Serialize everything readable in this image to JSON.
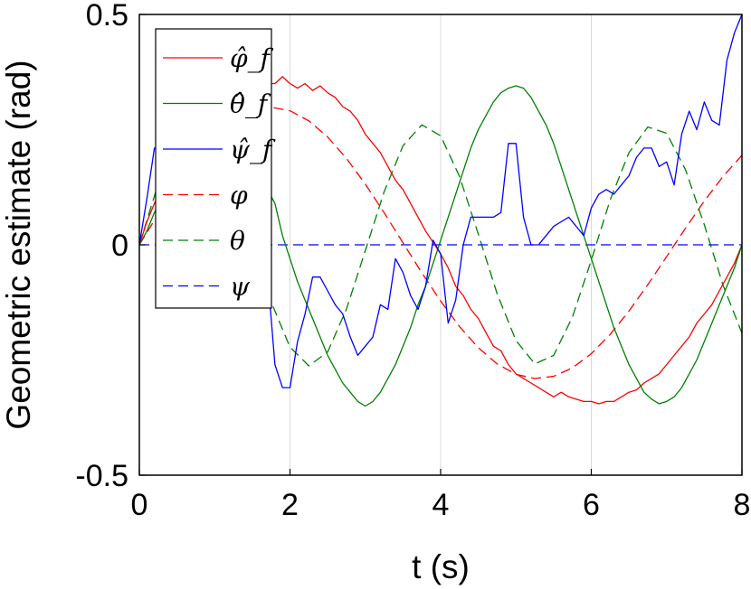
{
  "chart_data": {
    "type": "line",
    "title": "",
    "xlabel": "t (s)",
    "ylabel": "Geometric estimate (rad)",
    "xlim": [
      0,
      8
    ],
    "ylim": [
      -0.5,
      0.5
    ],
    "xticks": [
      0,
      2,
      4,
      6,
      8
    ],
    "xtick_labels": [
      "0",
      "2",
      "4",
      "6",
      "8"
    ],
    "yticks": [
      -0.5,
      0,
      0.5
    ],
    "ytick_labels": [
      "-0.5",
      "0",
      "0.5"
    ],
    "grid": "x-only",
    "legend_position": "top-left",
    "series": [
      {
        "name": "φ̂_f",
        "color": "#ff0000",
        "style": "solid",
        "x": [
          0,
          0.1,
          0.2,
          0.3,
          0.4,
          0.5,
          0.6,
          0.7,
          0.8,
          0.9,
          1.0,
          1.1,
          1.2,
          1.3,
          1.4,
          1.5,
          1.6,
          1.7,
          1.8,
          1.9,
          2.0,
          2.1,
          2.2,
          2.3,
          2.4,
          2.5,
          2.6,
          2.7,
          2.8,
          2.9,
          3.0,
          3.1,
          3.2,
          3.3,
          3.4,
          3.5,
          3.6,
          3.7,
          3.8,
          3.9,
          4.0,
          4.1,
          4.2,
          4.3,
          4.4,
          4.5,
          4.6,
          4.7,
          4.8,
          4.9,
          5.0,
          5.1,
          5.2,
          5.3,
          5.4,
          5.5,
          5.6,
          5.7,
          5.8,
          5.9,
          6.0,
          6.1,
          6.2,
          6.3,
          6.4,
          6.5,
          6.6,
          6.7,
          6.8,
          6.9,
          7.0,
          7.1,
          7.2,
          7.3,
          7.4,
          7.5,
          7.6,
          7.7,
          7.8,
          7.9,
          8.0
        ],
        "y": [
          0,
          0.05,
          0.09,
          0.12,
          0.16,
          0.19,
          0.22,
          0.25,
          0.27,
          0.29,
          0.31,
          0.32,
          0.33,
          0.34,
          0.34,
          0.35,
          0.345,
          0.35,
          0.35,
          0.365,
          0.35,
          0.34,
          0.35,
          0.335,
          0.345,
          0.33,
          0.32,
          0.3,
          0.29,
          0.27,
          0.24,
          0.22,
          0.2,
          0.17,
          0.14,
          0.12,
          0.09,
          0.06,
          0.03,
          0.005,
          -0.02,
          -0.05,
          -0.09,
          -0.11,
          -0.14,
          -0.16,
          -0.19,
          -0.22,
          -0.23,
          -0.26,
          -0.28,
          -0.29,
          -0.3,
          -0.31,
          -0.32,
          -0.33,
          -0.32,
          -0.33,
          -0.335,
          -0.34,
          -0.34,
          -0.345,
          -0.34,
          -0.34,
          -0.33,
          -0.32,
          -0.315,
          -0.3,
          -0.29,
          -0.28,
          -0.26,
          -0.24,
          -0.22,
          -0.2,
          -0.17,
          -0.15,
          -0.13,
          -0.1,
          -0.07,
          -0.04,
          0
        ]
      },
      {
        "name": "θ̂_f",
        "color": "#008000",
        "style": "solid",
        "x": [
          0,
          0.1,
          0.2,
          0.3,
          0.4,
          0.5,
          0.6,
          0.7,
          0.8,
          0.9,
          1.0,
          1.1,
          1.2,
          1.3,
          1.4,
          1.5,
          1.6,
          1.7,
          1.8,
          1.9,
          2.0,
          2.1,
          2.2,
          2.3,
          2.4,
          2.5,
          2.6,
          2.7,
          2.8,
          2.9,
          3.0,
          3.1,
          3.2,
          3.3,
          3.4,
          3.5,
          3.6,
          3.7,
          3.8,
          3.9,
          4.0,
          4.1,
          4.2,
          4.3,
          4.4,
          4.5,
          4.6,
          4.7,
          4.8,
          4.9,
          5.0,
          5.1,
          5.2,
          5.3,
          5.4,
          5.5,
          5.6,
          5.7,
          5.8,
          5.9,
          6.0,
          6.1,
          6.2,
          6.3,
          6.4,
          6.5,
          6.6,
          6.7,
          6.8,
          6.9,
          7.0,
          7.1,
          7.2,
          7.3,
          7.4,
          7.5,
          7.6,
          7.7,
          7.8,
          7.9,
          8.0
        ],
        "y": [
          0,
          0.03,
          0.07,
          0.1,
          0.13,
          0.15,
          0.17,
          0.18,
          0.19,
          0.19,
          0.19,
          0.18,
          0.17,
          0.16,
          0.14,
          0.14,
          0.14,
          0.12,
          0.09,
          0.02,
          -0.03,
          -0.08,
          -0.12,
          -0.16,
          -0.2,
          -0.24,
          -0.27,
          -0.3,
          -0.32,
          -0.34,
          -0.35,
          -0.34,
          -0.32,
          -0.29,
          -0.26,
          -0.22,
          -0.18,
          -0.13,
          -0.09,
          -0.04,
          0.01,
          0.06,
          0.11,
          0.16,
          0.21,
          0.25,
          0.28,
          0.31,
          0.33,
          0.34,
          0.345,
          0.34,
          0.32,
          0.29,
          0.26,
          0.22,
          0.17,
          0.12,
          0.07,
          0.02,
          -0.03,
          -0.08,
          -0.13,
          -0.18,
          -0.22,
          -0.26,
          -0.29,
          -0.32,
          -0.335,
          -0.345,
          -0.34,
          -0.33,
          -0.31,
          -0.28,
          -0.25,
          -0.21,
          -0.17,
          -0.13,
          -0.09,
          -0.05,
          0
        ]
      },
      {
        "name": "ψ̂_f",
        "color": "#0000ff",
        "style": "solid",
        "x": [
          0,
          0.1,
          0.2,
          0.3,
          0.4,
          0.5,
          0.6,
          0.7,
          0.8,
          0.9,
          1.0,
          1.1,
          1.2,
          1.3,
          1.4,
          1.5,
          1.6,
          1.7,
          1.8,
          1.9,
          2.0,
          2.1,
          2.2,
          2.3,
          2.4,
          2.5,
          2.6,
          2.7,
          2.8,
          2.9,
          3.0,
          3.1,
          3.2,
          3.3,
          3.4,
          3.5,
          3.6,
          3.7,
          3.8,
          3.9,
          4.0,
          4.1,
          4.2,
          4.3,
          4.4,
          4.5,
          4.6,
          4.7,
          4.8,
          4.9,
          5.0,
          5.1,
          5.2,
          5.3,
          5.4,
          5.5,
          5.6,
          5.7,
          5.8,
          5.9,
          6.0,
          6.1,
          6.2,
          6.3,
          6.4,
          6.5,
          6.6,
          6.7,
          6.8,
          6.9,
          7.0,
          7.1,
          7.2,
          7.3,
          7.4,
          7.5,
          7.6,
          7.7,
          7.8,
          7.9,
          8.0
        ],
        "y": [
          0,
          0.1,
          0.21,
          0.2,
          0.18,
          0.17,
          0.16,
          0.15,
          0.16,
          0.15,
          0.14,
          0.13,
          0.13,
          0.12,
          0.12,
          0.11,
          0.09,
          -0.06,
          -0.26,
          -0.31,
          -0.31,
          -0.21,
          -0.15,
          -0.07,
          -0.07,
          -0.1,
          -0.13,
          -0.15,
          -0.2,
          -0.24,
          -0.22,
          -0.2,
          -0.13,
          -0.14,
          -0.03,
          -0.06,
          -0.11,
          -0.14,
          -0.09,
          0.01,
          -0.02,
          -0.17,
          -0.12,
          0.0,
          0.06,
          0.06,
          0.06,
          0.06,
          0.07,
          0.22,
          0.22,
          0.06,
          0.0,
          0.0,
          0.02,
          0.04,
          0.05,
          0.06,
          0.04,
          0.02,
          0.08,
          0.11,
          0.12,
          0.11,
          0.13,
          0.15,
          0.19,
          0.21,
          0.21,
          0.17,
          0.18,
          0.13,
          0.24,
          0.29,
          0.25,
          0.31,
          0.27,
          0.26,
          0.4,
          0.46,
          0.5
        ]
      },
      {
        "name": "φ",
        "color": "#ff0000",
        "style": "dashed",
        "x": [
          0,
          0.25,
          0.5,
          0.75,
          1.0,
          1.25,
          1.5,
          1.75,
          2.0,
          2.25,
          2.5,
          2.75,
          3.0,
          3.25,
          3.5,
          3.75,
          4.0,
          4.25,
          4.5,
          4.75,
          5.0,
          5.25,
          5.5,
          5.75,
          6.0,
          6.25,
          6.5,
          6.75,
          7.0,
          7.25,
          7.5,
          7.75,
          8.0
        ],
        "y": [
          0,
          0.0668,
          0.1302,
          0.187,
          0.2343,
          0.2696,
          0.2914,
          0.2986,
          0.291,
          0.2691,
          0.234,
          0.1875,
          0.1318,
          0.0697,
          0.0044,
          -0.0607,
          -0.1222,
          -0.1773,
          -0.2234,
          -0.2585,
          -0.2811,
          -0.2902,
          -0.2854,
          -0.2671,
          -0.2363,
          -0.1945,
          -0.1438,
          -0.0866,
          -0.0256,
          0.0359,
          0.095,
          0.1486,
          0.1944
        ]
      },
      {
        "name": "θ",
        "color": "#008000",
        "style": "dashed",
        "x": [
          0,
          0.25,
          0.5,
          0.75,
          1.0,
          1.25,
          1.5,
          1.75,
          2.0,
          2.25,
          2.5,
          2.75,
          3.0,
          3.25,
          3.5,
          3.75,
          4.0,
          4.25,
          4.5,
          4.75,
          5.0,
          5.25,
          5.5,
          5.75,
          6.0,
          6.25,
          6.5,
          6.75,
          7.0,
          7.25,
          7.5,
          7.75,
          8.0
        ],
        "y": [
          0,
          0.1323,
          0.2286,
          0.263,
          0.2265,
          0.1293,
          0.0021,
          -0.124,
          -0.2221,
          -0.2627,
          -0.2325,
          -0.1394,
          -0.0125,
          0.1153,
          0.2149,
          0.2605,
          0.2367,
          0.1485,
          0.0232,
          -0.1064,
          -0.2078,
          -0.2584,
          -0.2401,
          -0.1565,
          -0.0334,
          0.0973,
          0.2,
          0.2556,
          0.2422,
          0.1633,
          0.0435,
          -0.0881,
          -0.1917
        ]
      },
      {
        "name": "ψ",
        "color": "#0000ff",
        "style": "dashed",
        "x": [
          0,
          8
        ],
        "y": [
          0,
          0
        ]
      }
    ]
  }
}
